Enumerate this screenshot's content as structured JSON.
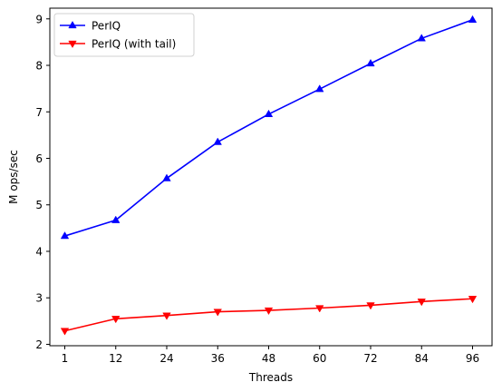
{
  "chart_data": {
    "type": "line",
    "title": "",
    "xlabel": "Threads",
    "ylabel": "M ops/sec",
    "categories": [
      "1",
      "12",
      "24",
      "36",
      "48",
      "60",
      "72",
      "84",
      "96"
    ],
    "ylim": [
      1.97,
      9.23
    ],
    "yticks": [
      2,
      3,
      4,
      5,
      6,
      7,
      8,
      9
    ],
    "grid": false,
    "legend_position": "top-left",
    "series": [
      {
        "name": "PerIQ",
        "color": "#0000ff",
        "marker": "triangle-up",
        "values": [
          4.33,
          4.67,
          5.57,
          6.35,
          6.95,
          7.49,
          8.04,
          8.58,
          8.98
        ]
      },
      {
        "name": "PerIQ (with tail)",
        "color": "#ff0000",
        "marker": "triangle-down",
        "values": [
          2.29,
          2.55,
          2.62,
          2.7,
          2.73,
          2.78,
          2.84,
          2.92,
          2.98
        ]
      }
    ]
  }
}
